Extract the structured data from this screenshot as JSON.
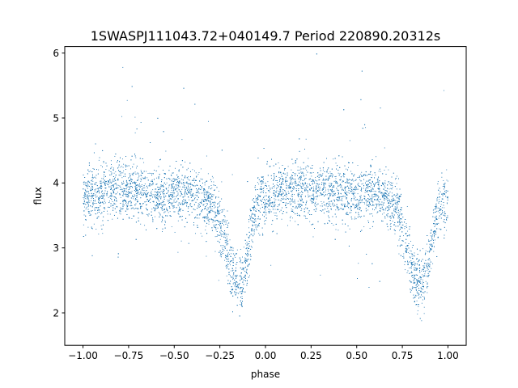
{
  "chart_data": {
    "type": "scatter",
    "title": "1SWASPJ111043.72+040149.7 Period 220890.20312s",
    "xlabel": "phase",
    "ylabel": "flux",
    "xlim": [
      -1.1,
      1.1
    ],
    "ylim": [
      1.5,
      6.1
    ],
    "grid": false,
    "legend": "none",
    "marker_color": "#1f77b4",
    "x_ticks": [
      -1.0,
      -0.75,
      -0.5,
      -0.25,
      0.0,
      0.25,
      0.5,
      0.75,
      1.0
    ],
    "x_tick_labels": [
      "−1.00",
      "−0.75",
      "−0.50",
      "−0.25",
      "0.00",
      "0.25",
      "0.50",
      "0.75",
      "1.00"
    ],
    "y_ticks": [
      2,
      3,
      4,
      5,
      6
    ],
    "y_tick_labels": [
      "2",
      "3",
      "4",
      "5",
      "6"
    ],
    "series": [
      {
        "points_note_free": true,
        "x": [
          -1.0,
          -0.95,
          -0.9,
          -0.85,
          -0.8,
          -0.75,
          -0.7,
          -0.65,
          -0.6,
          -0.55,
          -0.5,
          -0.45,
          -0.4,
          -0.35,
          -0.3,
          -0.27,
          -0.24,
          -0.21,
          -0.19,
          -0.17,
          -0.15,
          -0.13,
          -0.11,
          -0.09,
          -0.07,
          -0.05,
          -0.02,
          0.0,
          0.05,
          0.1,
          0.15,
          0.2,
          0.25,
          0.3,
          0.35,
          0.4,
          0.45,
          0.5,
          0.55,
          0.6,
          0.65,
          0.7,
          0.73,
          0.76,
          0.79,
          0.81,
          0.83,
          0.85,
          0.87,
          0.89,
          0.91,
          0.93,
          0.95,
          0.98,
          1.0
        ],
        "y": [
          3.75,
          3.8,
          3.85,
          3.9,
          3.9,
          3.9,
          3.88,
          3.85,
          3.8,
          3.78,
          3.8,
          3.82,
          3.8,
          3.75,
          3.65,
          3.5,
          3.25,
          2.95,
          2.7,
          2.5,
          2.4,
          2.45,
          2.7,
          3.05,
          3.4,
          3.65,
          3.75,
          3.78,
          3.82,
          3.85,
          3.88,
          3.9,
          3.9,
          3.92,
          3.88,
          3.85,
          3.82,
          3.8,
          3.82,
          3.85,
          3.8,
          3.7,
          3.5,
          3.2,
          2.85,
          2.6,
          2.45,
          2.4,
          2.5,
          2.75,
          3.1,
          3.4,
          3.6,
          3.7,
          3.75
        ]
      }
    ]
  }
}
